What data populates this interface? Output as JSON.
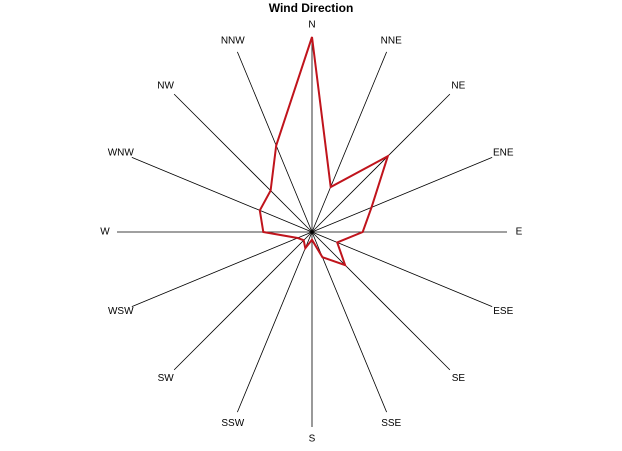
{
  "chart_data": {
    "type": "radar",
    "title": "Wind Direction",
    "categories": [
      "N",
      "NNE",
      "NE",
      "ENE",
      "E",
      "ESE",
      "SE",
      "SSE",
      "S",
      "SSW",
      "SW",
      "WSW",
      "W",
      "WNW",
      "NW",
      "NNW"
    ],
    "values": [
      1.0,
      0.25,
      0.55,
      0.33,
      0.26,
      0.14,
      0.24,
      0.14,
      0.04,
      0.09,
      0.06,
      0.08,
      0.25,
      0.29,
      0.3,
      0.48
    ],
    "color": "#c0141c",
    "rlim": [
      0,
      1
    ]
  }
}
